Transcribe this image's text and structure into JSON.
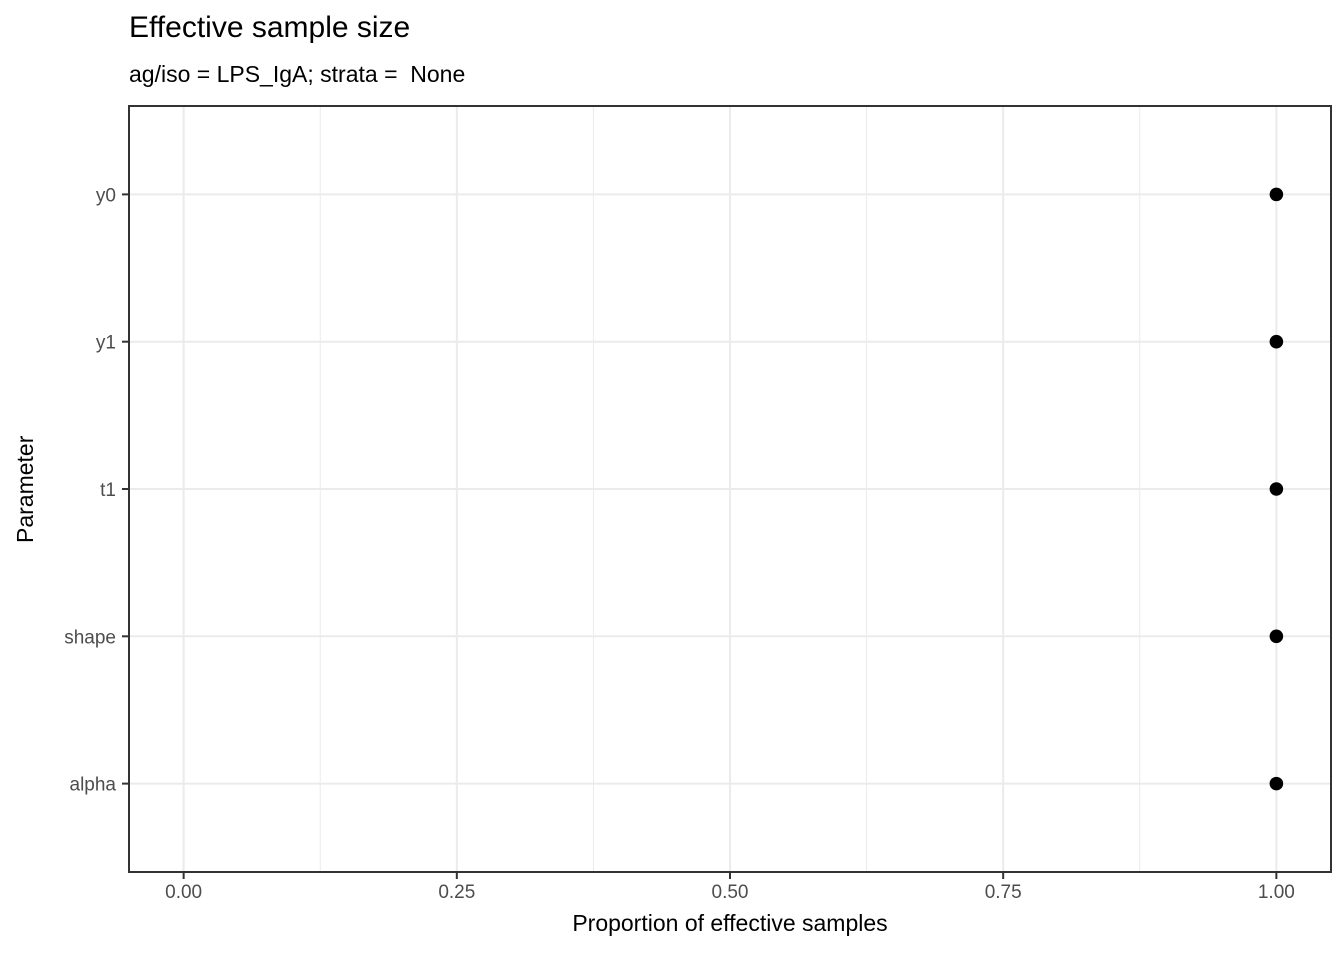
{
  "chart_data": {
    "type": "scatter",
    "title": "Effective sample size",
    "subtitle": "ag/iso = LPS_IgA; strata =  None",
    "xlabel": "Proportion of effective samples",
    "ylabel": "Parameter",
    "categories": [
      "y0",
      "y1",
      "t1",
      "shape",
      "alpha"
    ],
    "values": [
      1.0,
      1.0,
      1.0,
      1.0,
      1.0
    ],
    "xlim": [
      -0.05,
      1.05
    ],
    "x_major_ticks": [
      0.0,
      0.25,
      0.5,
      0.75,
      1.0
    ],
    "x_tick_labels": [
      "0.00",
      "0.25",
      "0.50",
      "0.75",
      "1.00"
    ],
    "x_minor_ticks": [
      0.125,
      0.375,
      0.625,
      0.875
    ],
    "grid": true,
    "legend": "none",
    "colors": {
      "point": "#000000",
      "grid_major": "#EBEBEB",
      "grid_minor": "#EBEBEB",
      "panel_border": "#333333",
      "tick_mark": "#333333",
      "axis_text": "#4D4D4D",
      "title_text": "#000000",
      "panel_background": "#FFFFFF"
    }
  }
}
